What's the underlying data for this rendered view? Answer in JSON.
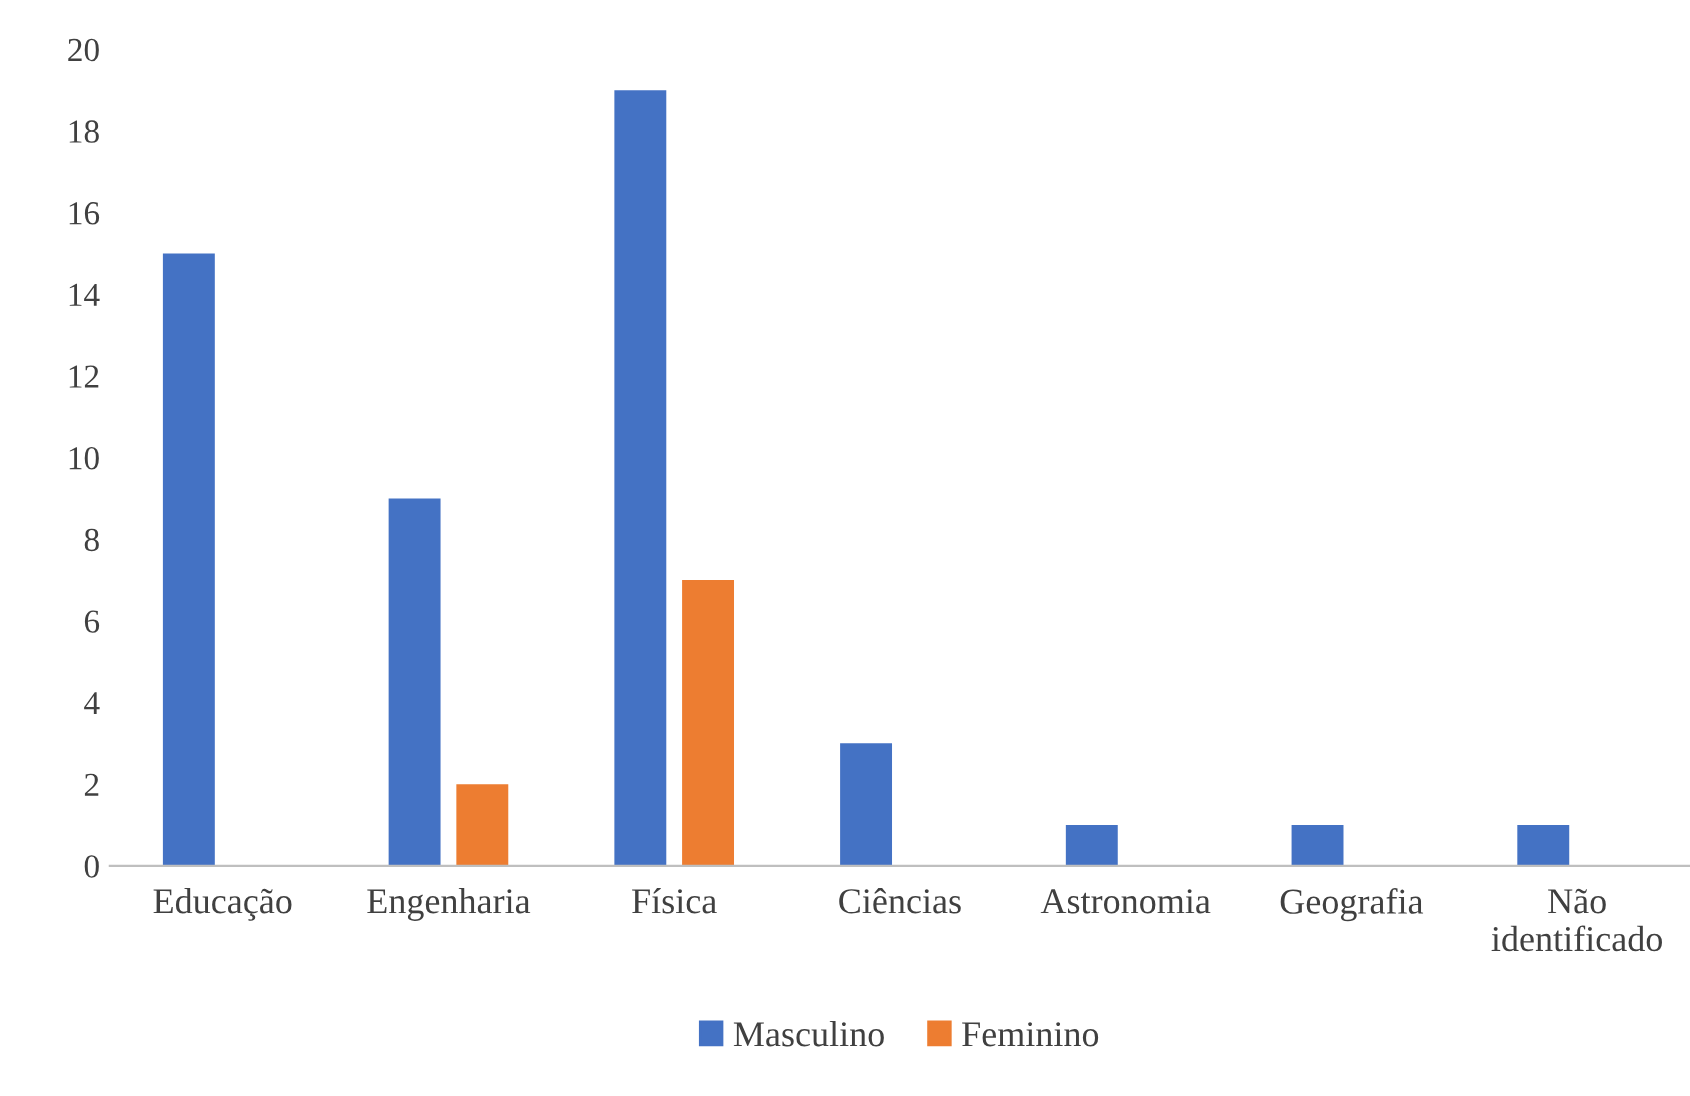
{
  "chart_data": {
    "type": "bar",
    "categories": [
      "Educação",
      "Engenharia",
      "Física",
      "Ciências",
      "Astronomia",
      "Geografia",
      "Não\nidentificado"
    ],
    "series": [
      {
        "name": "Masculino",
        "color": "#4472c4",
        "values": [
          15,
          9,
          19,
          3,
          1,
          1,
          1
        ]
      },
      {
        "name": "Feminino",
        "color": "#ed7d31",
        "values": [
          0,
          2,
          7,
          0,
          0,
          0,
          0
        ]
      }
    ],
    "ylim": [
      0,
      20
    ],
    "yticks": [
      0,
      2,
      4,
      6,
      8,
      10,
      12,
      14,
      16,
      18,
      20
    ],
    "grid": false,
    "legend": "bottom"
  }
}
